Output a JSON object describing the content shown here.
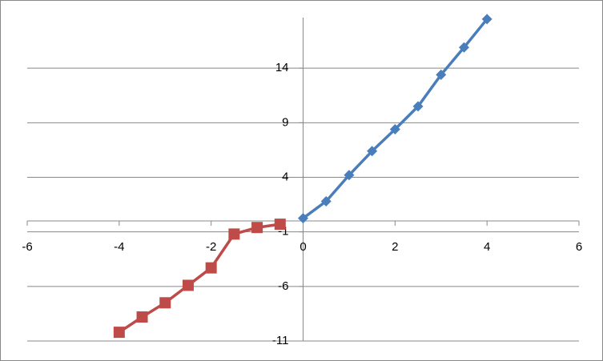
{
  "chart_data": {
    "type": "scatter",
    "xlim": [
      -6,
      6
    ],
    "xticks": [
      -6,
      -4,
      -2,
      0,
      2,
      4,
      6
    ],
    "ylim": [
      -11,
      19
    ],
    "yticks": [
      -11,
      -6,
      -1,
      4,
      9,
      14
    ],
    "grid": true,
    "series": [
      {
        "color": "#4a7ebb",
        "marker": "diamond",
        "x": [
          0,
          0.5,
          1,
          1.5,
          2,
          2.5,
          3,
          3.5,
          4
        ],
        "values": [
          0.25,
          1.8,
          4.2,
          6.4,
          8.4,
          10.5,
          13.4,
          15.9,
          18.5
        ]
      },
      {
        "color": "#be4b48",
        "marker": "square",
        "x": [
          -4,
          -3.5,
          -3,
          -2.5,
          -2,
          -1.5,
          -1,
          -0.5
        ],
        "values": [
          -10.2,
          -8.8,
          -7.5,
          -5.9,
          -4.3,
          -1.2,
          -0.6,
          -0.3
        ]
      }
    ]
  }
}
